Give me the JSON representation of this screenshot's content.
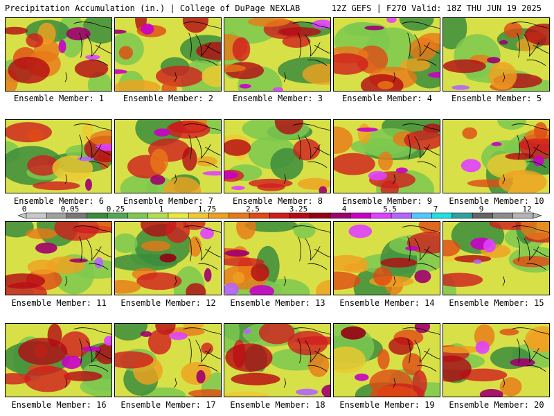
{
  "header": {
    "left": "Precipitation Accumulation (in.) | College of DuPage NEXLAB",
    "right": "12Z GEFS | F270 Valid: 18Z THU JUN 19 2025"
  },
  "panels": [
    {
      "label": "Ensemble Member: 1"
    },
    {
      "label": "Ensemble Member: 2"
    },
    {
      "label": "Ensemble Member: 3"
    },
    {
      "label": "Ensemble Member: 4"
    },
    {
      "label": "Ensemble Member: 5"
    },
    {
      "label": "Ensemble Member: 6"
    },
    {
      "label": "Ensemble Member: 7"
    },
    {
      "label": "Ensemble Member: 8"
    },
    {
      "label": "Ensemble Member: 9"
    },
    {
      "label": "Ensemble Member: 10"
    },
    {
      "label": "Ensemble Member: 11"
    },
    {
      "label": "Ensemble Member: 12"
    },
    {
      "label": "Ensemble Member: 13"
    },
    {
      "label": "Ensemble Member: 14"
    },
    {
      "label": "Ensemble Member: 15"
    },
    {
      "label": "Ensemble Member: 16"
    },
    {
      "label": "Ensemble Member: 17"
    },
    {
      "label": "Ensemble Member: 18"
    },
    {
      "label": "Ensemble Member: 19"
    },
    {
      "label": "Ensemble Member: 20"
    }
  ],
  "colorbar": {
    "tick_labels": [
      "0",
      "0.05",
      "0.25",
      "1",
      "1.75",
      "2.5",
      "3.25",
      "4",
      "5.5",
      "7",
      "9",
      "12"
    ],
    "colors": [
      "#c8c8c8",
      "#a0a0a0",
      "#787878",
      "#3c8c3c",
      "#52a852",
      "#7cc850",
      "#b4dc50",
      "#e8e840",
      "#f0c830",
      "#f0a020",
      "#e87818",
      "#e04a14",
      "#d01e1e",
      "#b40a14",
      "#960014",
      "#a0006e",
      "#c800c8",
      "#e040ff",
      "#b464ff",
      "#50c8ff",
      "#20e0e0",
      "#30a0a0",
      "#646464",
      "#8c8c8c",
      "#b4b4b4"
    ],
    "unit": "in."
  }
}
